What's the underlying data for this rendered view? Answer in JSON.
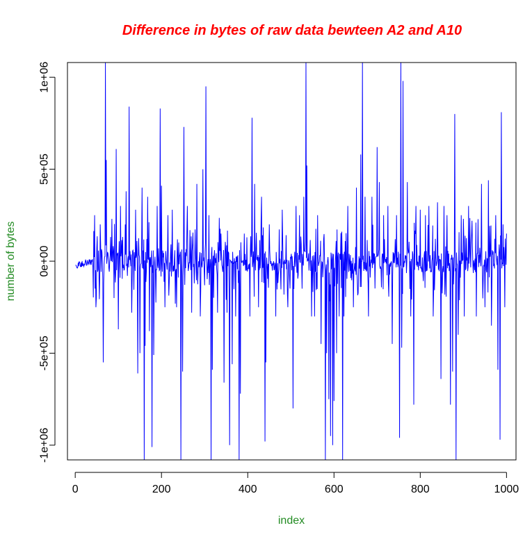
{
  "chart_data": {
    "type": "line",
    "title": "Difference in bytes of raw data bewteen A2 and A10",
    "xlabel": "index",
    "ylabel": "number of bytes",
    "xlim": [
      -18,
      1022
    ],
    "ylim": [
      -1080000,
      1080000
    ],
    "x_ticks": [
      0,
      200,
      400,
      600,
      800,
      1000
    ],
    "x_tick_labels": [
      "0",
      "200",
      "400",
      "600",
      "800",
      "1000"
    ],
    "y_ticks": [
      -1000000,
      -500000,
      0,
      500000,
      1000000
    ],
    "y_tick_labels": [
      "-1e+06",
      "-5e+05",
      "0e+00",
      "5e+05",
      "1e+06"
    ],
    "grid": false,
    "legend": "none",
    "series": [
      {
        "color": "#0000ff",
        "n_points": 1000,
        "baseline_start": 1,
        "baseline_end": 40,
        "baseline_level": -20000,
        "noise_amplitude": 60000,
        "spike_probability": 0.45,
        "spike_amplitude": 180000,
        "spikes": [
          {
            "x": 45,
            "y": 250000
          },
          {
            "x": 48,
            "y": -250000
          },
          {
            "x": 58,
            "y": 200000
          },
          {
            "x": 65,
            "y": -550000
          },
          {
            "x": 70,
            "y": 1080000
          },
          {
            "x": 72,
            "y": 550000
          },
          {
            "x": 85,
            "y": 230000
          },
          {
            "x": 90,
            "y": -200000
          },
          {
            "x": 95,
            "y": 610000
          },
          {
            "x": 100,
            "y": -370000
          },
          {
            "x": 105,
            "y": 300000
          },
          {
            "x": 118,
            "y": 380000
          },
          {
            "x": 125,
            "y": 840000
          },
          {
            "x": 131,
            "y": -280000
          },
          {
            "x": 140,
            "y": 280000
          },
          {
            "x": 145,
            "y": -610000
          },
          {
            "x": 150,
            "y": -500000
          },
          {
            "x": 155,
            "y": 400000
          },
          {
            "x": 160,
            "y": -1080000
          },
          {
            "x": 162,
            "y": -460000
          },
          {
            "x": 168,
            "y": 350000
          },
          {
            "x": 172,
            "y": -380000
          },
          {
            "x": 178,
            "y": -1010000
          },
          {
            "x": 182,
            "y": -510000
          },
          {
            "x": 190,
            "y": 300000
          },
          {
            "x": 197,
            "y": 830000
          },
          {
            "x": 200,
            "y": 410000
          },
          {
            "x": 208,
            "y": -250000
          },
          {
            "x": 215,
            "y": 250000
          },
          {
            "x": 225,
            "y": 280000
          },
          {
            "x": 235,
            "y": -250000
          },
          {
            "x": 245,
            "y": -1080000
          },
          {
            "x": 249,
            "y": -600000
          },
          {
            "x": 252,
            "y": 730000
          },
          {
            "x": 260,
            "y": 300000
          },
          {
            "x": 270,
            "y": -280000
          },
          {
            "x": 282,
            "y": 420000
          },
          {
            "x": 290,
            "y": -300000
          },
          {
            "x": 296,
            "y": 500000
          },
          {
            "x": 303,
            "y": 950000
          },
          {
            "x": 310,
            "y": 250000
          },
          {
            "x": 315,
            "y": -1080000
          },
          {
            "x": 318,
            "y": -590000
          },
          {
            "x": 330,
            "y": -280000
          },
          {
            "x": 338,
            "y": 150000
          },
          {
            "x": 345,
            "y": -660000
          },
          {
            "x": 352,
            "y": -280000
          },
          {
            "x": 358,
            "y": -1000000
          },
          {
            "x": 364,
            "y": -560000
          },
          {
            "x": 372,
            "y": -300000
          },
          {
            "x": 380,
            "y": -1080000
          },
          {
            "x": 383,
            "y": -720000
          },
          {
            "x": 392,
            "y": 150000
          },
          {
            "x": 405,
            "y": -300000
          },
          {
            "x": 410,
            "y": 780000
          },
          {
            "x": 416,
            "y": 420000
          },
          {
            "x": 425,
            "y": -250000
          },
          {
            "x": 432,
            "y": 350000
          },
          {
            "x": 440,
            "y": -980000
          },
          {
            "x": 442,
            "y": -550000
          },
          {
            "x": 450,
            "y": 200000
          },
          {
            "x": 465,
            "y": -300000
          },
          {
            "x": 480,
            "y": 280000
          },
          {
            "x": 493,
            "y": -250000
          },
          {
            "x": 505,
            "y": -800000
          },
          {
            "x": 512,
            "y": 300000
          },
          {
            "x": 520,
            "y": 250000
          },
          {
            "x": 530,
            "y": 350000
          },
          {
            "x": 535,
            "y": 1080000
          },
          {
            "x": 537,
            "y": 520000
          },
          {
            "x": 548,
            "y": -300000
          },
          {
            "x": 555,
            "y": -300000
          },
          {
            "x": 562,
            "y": 250000
          },
          {
            "x": 570,
            "y": -450000
          },
          {
            "x": 580,
            "y": -1080000
          },
          {
            "x": 583,
            "y": -500000
          },
          {
            "x": 588,
            "y": -750000
          },
          {
            "x": 592,
            "y": -950000
          },
          {
            "x": 597,
            "y": -1000000
          },
          {
            "x": 600,
            "y": -760000
          },
          {
            "x": 606,
            "y": -500000
          },
          {
            "x": 612,
            "y": -300000
          },
          {
            "x": 620,
            "y": -1080000
          },
          {
            "x": 623,
            "y": -300000
          },
          {
            "x": 632,
            "y": 300000
          },
          {
            "x": 645,
            "y": -250000
          },
          {
            "x": 652,
            "y": 400000
          },
          {
            "x": 662,
            "y": 580000
          },
          {
            "x": 666,
            "y": 1080000
          },
          {
            "x": 672,
            "y": 350000
          },
          {
            "x": 680,
            "y": -300000
          },
          {
            "x": 688,
            "y": 350000
          },
          {
            "x": 700,
            "y": 620000
          },
          {
            "x": 705,
            "y": 430000
          },
          {
            "x": 715,
            "y": 250000
          },
          {
            "x": 725,
            "y": 300000
          },
          {
            "x": 735,
            "y": -450000
          },
          {
            "x": 745,
            "y": 250000
          },
          {
            "x": 752,
            "y": -960000
          },
          {
            "x": 755,
            "y": 1080000
          },
          {
            "x": 757,
            "y": -470000
          },
          {
            "x": 760,
            "y": 980000
          },
          {
            "x": 770,
            "y": 430000
          },
          {
            "x": 778,
            "y": -300000
          },
          {
            "x": 785,
            "y": -780000
          },
          {
            "x": 790,
            "y": 300000
          },
          {
            "x": 800,
            "y": 280000
          },
          {
            "x": 812,
            "y": 250000
          },
          {
            "x": 820,
            "y": 300000
          },
          {
            "x": 830,
            "y": -300000
          },
          {
            "x": 840,
            "y": 320000
          },
          {
            "x": 848,
            "y": -640000
          },
          {
            "x": 855,
            "y": 300000
          },
          {
            "x": 862,
            "y": 250000
          },
          {
            "x": 870,
            "y": -780000
          },
          {
            "x": 875,
            "y": -600000
          },
          {
            "x": 880,
            "y": 800000
          },
          {
            "x": 883,
            "y": -1080000
          },
          {
            "x": 888,
            "y": -400000
          },
          {
            "x": 895,
            "y": 250000
          },
          {
            "x": 902,
            "y": -300000
          },
          {
            "x": 912,
            "y": 300000
          },
          {
            "x": 920,
            "y": 220000
          },
          {
            "x": 930,
            "y": -300000
          },
          {
            "x": 942,
            "y": 420000
          },
          {
            "x": 950,
            "y": -250000
          },
          {
            "x": 958,
            "y": 440000
          },
          {
            "x": 965,
            "y": -350000
          },
          {
            "x": 975,
            "y": 250000
          },
          {
            "x": 980,
            "y": -590000
          },
          {
            "x": 985,
            "y": -970000
          },
          {
            "x": 988,
            "y": 810000
          },
          {
            "x": 992,
            "y": 200000
          },
          {
            "x": 996,
            "y": -250000
          },
          {
            "x": 1000,
            "y": 150000
          }
        ]
      }
    ]
  },
  "colors": {
    "title": "#ff0000",
    "axis_label": "#228b22",
    "series": "#0000ff",
    "axes": "#000000"
  }
}
